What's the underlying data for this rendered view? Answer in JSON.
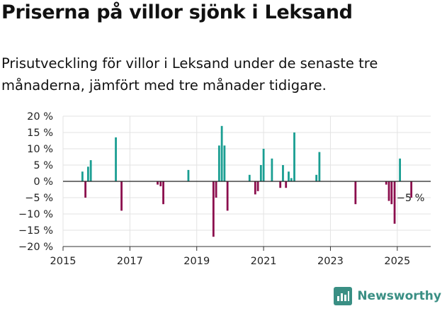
{
  "header": {
    "title": "Priserna på villor sjönk i Leksand",
    "subtitle": "Prisutveckling för villor i Leksand under de senaste tre månaderna, jämfört med tre månader tidigare."
  },
  "brand": {
    "name": "Newsworthy",
    "icon": "newsworthy-logo-icon"
  },
  "colors": {
    "positive": "#1a9e92",
    "negative": "#8b0e4d",
    "grid": "#e3e3e3",
    "zero": "#222222"
  },
  "chart_data": {
    "type": "bar",
    "ylim": [
      -20,
      20
    ],
    "yticks": [
      -20,
      -15,
      -10,
      -5,
      0,
      5,
      10,
      15,
      20
    ],
    "yticklabels": [
      "−20 %",
      "−15 %",
      "−10 %",
      "−5 %",
      "0 %",
      "5 %",
      "10 %",
      "15 %",
      "20 %"
    ],
    "xlim": [
      2015,
      2026
    ],
    "xticks": [
      2015,
      2017,
      2019,
      2021,
      2023,
      2025
    ],
    "xticklabels": [
      "2015",
      "2017",
      "2019",
      "2021",
      "2023",
      "2025"
    ],
    "grid": true,
    "annotation": {
      "text": "−5 %",
      "x": 2025.4,
      "y": -5
    },
    "series": [
      {
        "x": [
          2015.58,
          2015.67,
          2015.75,
          2015.83,
          2016.58,
          2016.75,
          2017.83,
          2017.92,
          2018.0,
          2018.75,
          2019.5,
          2019.58,
          2019.67,
          2019.75,
          2019.83,
          2019.92,
          2020.58,
          2020.75,
          2020.83,
          2020.92,
          2021.0,
          2021.25,
          2021.5,
          2021.58,
          2021.67,
          2021.75,
          2021.83,
          2021.92,
          2022.58,
          2022.67,
          2023.75,
          2024.67,
          2024.75,
          2024.83,
          2024.92,
          2025.08,
          2025.42
        ],
        "values": [
          3,
          -5,
          4.5,
          6.5,
          13.5,
          -9,
          -1,
          -1.5,
          -7,
          3.5,
          -17,
          -5,
          11,
          17,
          11,
          -9,
          2,
          -4,
          -3,
          5,
          10,
          7,
          -2,
          5,
          -2,
          3,
          1,
          15,
          2,
          9,
          -7,
          -1,
          -6,
          -7,
          -13,
          7,
          -5
        ]
      }
    ]
  }
}
